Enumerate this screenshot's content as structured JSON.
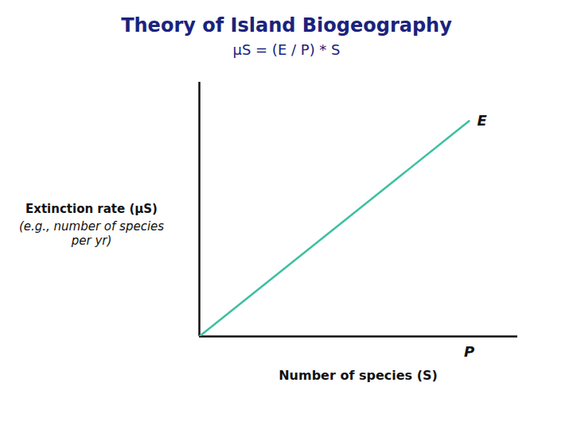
{
  "chart_data": {
    "type": "line",
    "title": "Theory of Island Biogeography",
    "subtitle": "μS = (E / P) * S",
    "x": [
      0,
      1
    ],
    "values": [
      0,
      1
    ],
    "color": "#3dbfa0",
    "xlabel": "Number of species (S)",
    "ylabel": "Extinction rate (μS)\n(e.g., number of species\nper yr)",
    "annotations": [
      "E",
      "P"
    ],
    "xlim": [
      0,
      1.18
    ],
    "ylim": [
      0,
      1.18
    ],
    "xticks": [],
    "yticks": [],
    "tick_labels": false,
    "grid": false
  }
}
